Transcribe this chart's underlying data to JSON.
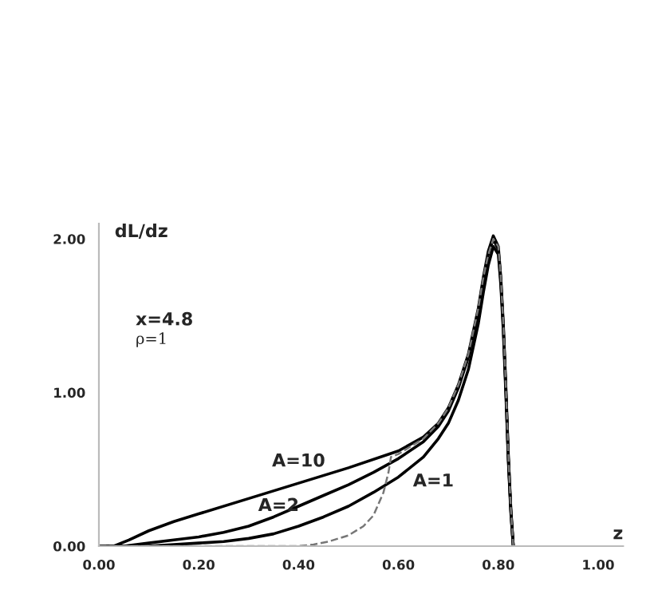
{
  "chart_data": {
    "type": "line",
    "xlabel": "z",
    "ylabel": "dL/dz",
    "xlim": [
      0,
      1.05
    ],
    "ylim": [
      0,
      2.1
    ],
    "xticks": [
      {
        "value": 0,
        "label": "0.00"
      },
      {
        "value": 0.2,
        "label": "0.20"
      },
      {
        "value": 0.4,
        "label": "0.40"
      },
      {
        "value": 0.6,
        "label": "0.60"
      },
      {
        "value": 0.8,
        "label": "0.80"
      },
      {
        "value": 1.0,
        "label": "1.00"
      }
    ],
    "yticks": [
      {
        "value": 0,
        "label": "0.00"
      },
      {
        "value": 1.0,
        "label": "1.00"
      },
      {
        "value": 2.0,
        "label": "2.00"
      }
    ],
    "grid": false,
    "legend": false,
    "marker": "none",
    "series": [
      {
        "name": "A=10",
        "color": "#000000",
        "line_style": "solid",
        "x": [
          0.0,
          0.03,
          0.06,
          0.1,
          0.15,
          0.2,
          0.3,
          0.4,
          0.5,
          0.6,
          0.65,
          0.68,
          0.7,
          0.72,
          0.74,
          0.76,
          0.77,
          0.78,
          0.79,
          0.8,
          0.805,
          0.81,
          0.815,
          0.82,
          0.825,
          0.83
        ],
        "values": [
          0.0,
          0.0,
          0.04,
          0.1,
          0.16,
          0.21,
          0.31,
          0.41,
          0.51,
          0.62,
          0.71,
          0.8,
          0.9,
          1.05,
          1.25,
          1.55,
          1.75,
          1.92,
          2.02,
          1.95,
          1.75,
          1.45,
          1.05,
          0.6,
          0.25,
          0.0
        ]
      },
      {
        "name": "A=2",
        "color": "#000000",
        "line_style": "solid",
        "x": [
          0.0,
          0.05,
          0.1,
          0.15,
          0.2,
          0.25,
          0.3,
          0.35,
          0.4,
          0.45,
          0.5,
          0.55,
          0.6,
          0.65,
          0.68,
          0.7,
          0.72,
          0.74,
          0.76,
          0.77,
          0.78,
          0.79,
          0.8,
          0.805,
          0.81,
          0.815,
          0.82,
          0.825,
          0.83
        ],
        "values": [
          0.0,
          0.0,
          0.02,
          0.04,
          0.06,
          0.09,
          0.13,
          0.19,
          0.26,
          0.33,
          0.4,
          0.48,
          0.57,
          0.68,
          0.78,
          0.88,
          1.03,
          1.23,
          1.52,
          1.72,
          1.9,
          2.0,
          1.93,
          1.73,
          1.43,
          1.03,
          0.58,
          0.24,
          0.0
        ]
      },
      {
        "name": "A=1",
        "color": "#000000",
        "line_style": "solid",
        "x": [
          0.0,
          0.05,
          0.1,
          0.15,
          0.2,
          0.25,
          0.3,
          0.35,
          0.4,
          0.45,
          0.5,
          0.55,
          0.6,
          0.65,
          0.68,
          0.7,
          0.72,
          0.74,
          0.76,
          0.77,
          0.78,
          0.79,
          0.8,
          0.805,
          0.81,
          0.815,
          0.82,
          0.825,
          0.83
        ],
        "values": [
          0.0,
          0.0,
          0.0,
          0.01,
          0.02,
          0.03,
          0.05,
          0.08,
          0.13,
          0.19,
          0.26,
          0.35,
          0.45,
          0.58,
          0.7,
          0.8,
          0.95,
          1.15,
          1.45,
          1.65,
          1.83,
          1.95,
          1.9,
          1.7,
          1.4,
          1.0,
          0.56,
          0.22,
          0.0
        ]
      },
      {
        "color": "#777777",
        "line_style": "dashed",
        "x": [
          0.0,
          0.2,
          0.4,
          0.43,
          0.46,
          0.5,
          0.53,
          0.55,
          0.57,
          0.58,
          0.585,
          0.6,
          0.65,
          0.68,
          0.7,
          0.72,
          0.74,
          0.76,
          0.77,
          0.78,
          0.79,
          0.8,
          0.805,
          0.81,
          0.815,
          0.82,
          0.825,
          0.83
        ],
        "values": [
          0.0,
          0.0,
          0.0,
          0.01,
          0.03,
          0.07,
          0.13,
          0.2,
          0.35,
          0.48,
          0.58,
          0.6,
          0.7,
          0.8,
          0.9,
          1.05,
          1.25,
          1.55,
          1.75,
          1.9,
          2.0,
          1.95,
          1.75,
          1.45,
          1.05,
          0.6,
          0.25,
          0.0
        ]
      }
    ],
    "annotations": [
      "x=4.8",
      "ρ=1"
    ]
  }
}
